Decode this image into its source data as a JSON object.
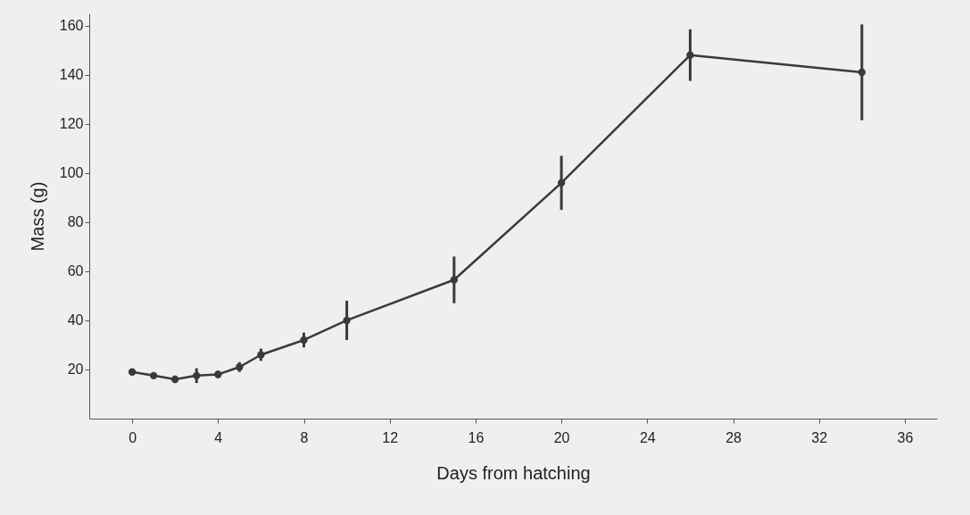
{
  "chart_data": {
    "type": "line",
    "xlabel": "Days from hatching",
    "ylabel": "Mass (g)",
    "x": [
      0,
      1,
      2,
      3,
      4,
      5,
      6,
      8,
      10,
      15,
      20,
      26,
      34
    ],
    "series": [
      {
        "color": "#3a3a3a",
        "values": [
          19,
          17.5,
          16,
          17.5,
          18,
          21,
          26,
          32,
          40,
          56.5,
          96,
          148,
          141
        ],
        "errors": [
          1,
          1,
          1.5,
          3,
          1.5,
          2,
          2.5,
          3,
          8,
          9.5,
          11,
          10.5,
          19.5
        ]
      }
    ],
    "xlim": [
      -2,
      37.5
    ],
    "xticks": [
      0,
      4,
      8,
      12,
      16,
      20,
      24,
      28,
      32,
      36
    ],
    "ylim": [
      0,
      165
    ],
    "yticks": [
      20,
      40,
      60,
      80,
      100,
      120,
      140,
      160
    ],
    "marker": "circle",
    "grid": false
  }
}
